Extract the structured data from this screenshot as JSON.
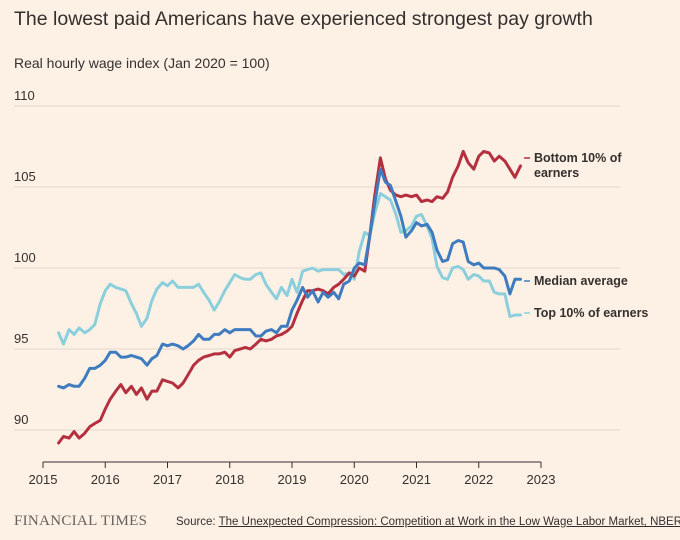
{
  "chart_data": {
    "type": "line",
    "title": "The lowest paid Americans have experienced strongest pay growth",
    "subtitle": "Real hourly wage index (Jan 2020 = 100)",
    "xlabel": "",
    "ylabel": "",
    "xlim": [
      2015,
      2023
    ],
    "ylim": [
      88,
      110
    ],
    "x_ticks": [
      "2015",
      "2016",
      "2017",
      "2018",
      "2019",
      "2020",
      "2021",
      "2022",
      "2023"
    ],
    "y_ticks": [
      "90",
      "95",
      "100",
      "105",
      "110"
    ],
    "grid": true,
    "legend": "direct labels at line ends",
    "series": [
      {
        "name": "Bottom 10% of earners",
        "label_lines": [
          "Bottom 10% of",
          "earners"
        ],
        "color": "#b5303f",
        "points": [
          [
            2015.25,
            89.2
          ],
          [
            2015.33,
            89.6
          ],
          [
            2015.42,
            89.5
          ],
          [
            2015.5,
            89.9
          ],
          [
            2015.58,
            89.5
          ],
          [
            2015.67,
            89.8
          ],
          [
            2015.75,
            90.2
          ],
          [
            2015.83,
            90.4
          ],
          [
            2015.92,
            90.6
          ],
          [
            2016.0,
            91.3
          ],
          [
            2016.08,
            91.9
          ],
          [
            2016.17,
            92.4
          ],
          [
            2016.25,
            92.8
          ],
          [
            2016.33,
            92.3
          ],
          [
            2016.42,
            92.7
          ],
          [
            2016.5,
            92.2
          ],
          [
            2016.58,
            92.6
          ],
          [
            2016.67,
            91.9
          ],
          [
            2016.75,
            92.4
          ],
          [
            2016.83,
            92.4
          ],
          [
            2016.92,
            93.1
          ],
          [
            2017.0,
            93.0
          ],
          [
            2017.08,
            92.9
          ],
          [
            2017.17,
            92.6
          ],
          [
            2017.25,
            92.9
          ],
          [
            2017.33,
            93.4
          ],
          [
            2017.42,
            94.0
          ],
          [
            2017.5,
            94.3
          ],
          [
            2017.58,
            94.5
          ],
          [
            2017.67,
            94.6
          ],
          [
            2017.75,
            94.7
          ],
          [
            2017.83,
            94.7
          ],
          [
            2017.92,
            94.8
          ],
          [
            2018.0,
            94.5
          ],
          [
            2018.08,
            94.9
          ],
          [
            2018.17,
            95.0
          ],
          [
            2018.25,
            95.1
          ],
          [
            2018.33,
            95.0
          ],
          [
            2018.42,
            95.3
          ],
          [
            2018.5,
            95.6
          ],
          [
            2018.58,
            95.5
          ],
          [
            2018.67,
            95.6
          ],
          [
            2018.75,
            95.8
          ],
          [
            2018.83,
            95.9
          ],
          [
            2018.92,
            96.1
          ],
          [
            2019.0,
            96.4
          ],
          [
            2019.08,
            97.2
          ],
          [
            2019.17,
            98.0
          ],
          [
            2019.25,
            98.6
          ],
          [
            2019.33,
            98.6
          ],
          [
            2019.42,
            98.7
          ],
          [
            2019.5,
            98.6
          ],
          [
            2019.58,
            98.4
          ],
          [
            2019.67,
            98.8
          ],
          [
            2019.75,
            99.0
          ],
          [
            2019.83,
            99.3
          ],
          [
            2019.92,
            99.7
          ],
          [
            2020.0,
            99.5
          ],
          [
            2020.08,
            100.0
          ],
          [
            2020.17,
            99.8
          ],
          [
            2020.25,
            102.0
          ],
          [
            2020.33,
            104.5
          ],
          [
            2020.42,
            106.8
          ],
          [
            2020.5,
            105.5
          ],
          [
            2020.58,
            104.8
          ],
          [
            2020.67,
            104.5
          ],
          [
            2020.75,
            104.4
          ],
          [
            2020.83,
            104.5
          ],
          [
            2020.92,
            104.4
          ],
          [
            2021.0,
            104.5
          ],
          [
            2021.08,
            104.1
          ],
          [
            2021.17,
            104.2
          ],
          [
            2021.25,
            104.1
          ],
          [
            2021.33,
            104.4
          ],
          [
            2021.42,
            104.3
          ],
          [
            2021.5,
            104.7
          ],
          [
            2021.58,
            105.6
          ],
          [
            2021.67,
            106.3
          ],
          [
            2021.75,
            107.2
          ],
          [
            2021.83,
            106.5
          ],
          [
            2021.92,
            106.1
          ],
          [
            2022.0,
            106.9
          ],
          [
            2022.08,
            107.2
          ],
          [
            2022.17,
            107.1
          ],
          [
            2022.25,
            106.6
          ],
          [
            2022.33,
            106.9
          ],
          [
            2022.42,
            106.6
          ],
          [
            2022.5,
            106.1
          ],
          [
            2022.58,
            105.6
          ],
          [
            2022.67,
            106.3
          ]
        ]
      },
      {
        "name": "Median average",
        "label_lines": [
          "Median average"
        ],
        "color": "#3f7cbf",
        "points": [
          [
            2015.25,
            92.7
          ],
          [
            2015.33,
            92.6
          ],
          [
            2015.42,
            92.8
          ],
          [
            2015.5,
            92.7
          ],
          [
            2015.58,
            92.7
          ],
          [
            2015.67,
            93.2
          ],
          [
            2015.75,
            93.8
          ],
          [
            2015.83,
            93.8
          ],
          [
            2015.92,
            94.0
          ],
          [
            2016.0,
            94.3
          ],
          [
            2016.08,
            94.8
          ],
          [
            2016.17,
            94.8
          ],
          [
            2016.25,
            94.5
          ],
          [
            2016.33,
            94.5
          ],
          [
            2016.42,
            94.6
          ],
          [
            2016.5,
            94.5
          ],
          [
            2016.58,
            94.4
          ],
          [
            2016.67,
            94.0
          ],
          [
            2016.75,
            94.4
          ],
          [
            2016.83,
            94.6
          ],
          [
            2016.92,
            95.3
          ],
          [
            2017.0,
            95.2
          ],
          [
            2017.08,
            95.3
          ],
          [
            2017.17,
            95.2
          ],
          [
            2017.25,
            95.0
          ],
          [
            2017.33,
            95.2
          ],
          [
            2017.42,
            95.5
          ],
          [
            2017.5,
            95.9
          ],
          [
            2017.58,
            95.6
          ],
          [
            2017.67,
            95.6
          ],
          [
            2017.75,
            95.9
          ],
          [
            2017.83,
            95.9
          ],
          [
            2017.92,
            96.2
          ],
          [
            2018.0,
            96.0
          ],
          [
            2018.08,
            96.2
          ],
          [
            2018.17,
            96.2
          ],
          [
            2018.25,
            96.2
          ],
          [
            2018.33,
            96.2
          ],
          [
            2018.42,
            95.8
          ],
          [
            2018.5,
            95.8
          ],
          [
            2018.58,
            96.1
          ],
          [
            2018.67,
            96.2
          ],
          [
            2018.75,
            96.0
          ],
          [
            2018.83,
            96.4
          ],
          [
            2018.92,
            96.4
          ],
          [
            2019.0,
            97.4
          ],
          [
            2019.08,
            98.0
          ],
          [
            2019.17,
            98.8
          ],
          [
            2019.25,
            98.2
          ],
          [
            2019.33,
            98.6
          ],
          [
            2019.42,
            97.9
          ],
          [
            2019.5,
            98.5
          ],
          [
            2019.58,
            98.2
          ],
          [
            2019.67,
            98.5
          ],
          [
            2019.75,
            98.1
          ],
          [
            2019.83,
            99.0
          ],
          [
            2019.92,
            99.2
          ],
          [
            2020.0,
            100.0
          ],
          [
            2020.08,
            100.3
          ],
          [
            2020.17,
            100.2
          ],
          [
            2020.25,
            102.0
          ],
          [
            2020.33,
            104.0
          ],
          [
            2020.42,
            106.1
          ],
          [
            2020.5,
            105.3
          ],
          [
            2020.58,
            105.1
          ],
          [
            2020.67,
            104.1
          ],
          [
            2020.75,
            103.2
          ],
          [
            2020.83,
            101.9
          ],
          [
            2020.92,
            102.3
          ],
          [
            2021.0,
            102.8
          ],
          [
            2021.08,
            102.6
          ],
          [
            2021.17,
            102.7
          ],
          [
            2021.25,
            102.2
          ],
          [
            2021.33,
            101.1
          ],
          [
            2021.42,
            100.4
          ],
          [
            2021.5,
            100.5
          ],
          [
            2021.58,
            101.5
          ],
          [
            2021.67,
            101.7
          ],
          [
            2021.75,
            101.6
          ],
          [
            2021.83,
            100.4
          ],
          [
            2021.92,
            100.2
          ],
          [
            2022.0,
            100.3
          ],
          [
            2022.08,
            100.0
          ],
          [
            2022.17,
            100.0
          ],
          [
            2022.25,
            100.0
          ],
          [
            2022.33,
            99.9
          ],
          [
            2022.42,
            99.5
          ],
          [
            2022.5,
            98.4
          ],
          [
            2022.58,
            99.3
          ],
          [
            2022.67,
            99.3
          ]
        ]
      },
      {
        "name": "Top 10% of earners",
        "label_lines": [
          "Top 10% of earners"
        ],
        "color": "#8ccfdc",
        "points": [
          [
            2015.25,
            96.0
          ],
          [
            2015.33,
            95.3
          ],
          [
            2015.42,
            96.2
          ],
          [
            2015.5,
            95.9
          ],
          [
            2015.58,
            96.3
          ],
          [
            2015.67,
            96.0
          ],
          [
            2015.75,
            96.2
          ],
          [
            2015.83,
            96.5
          ],
          [
            2015.92,
            97.8
          ],
          [
            2016.0,
            98.6
          ],
          [
            2016.08,
            99.0
          ],
          [
            2016.17,
            98.8
          ],
          [
            2016.25,
            98.7
          ],
          [
            2016.33,
            98.6
          ],
          [
            2016.42,
            97.8
          ],
          [
            2016.5,
            97.2
          ],
          [
            2016.58,
            96.4
          ],
          [
            2016.67,
            96.9
          ],
          [
            2016.75,
            98.0
          ],
          [
            2016.83,
            98.7
          ],
          [
            2016.92,
            99.1
          ],
          [
            2017.0,
            98.9
          ],
          [
            2017.08,
            99.2
          ],
          [
            2017.17,
            98.8
          ],
          [
            2017.25,
            98.8
          ],
          [
            2017.33,
            98.8
          ],
          [
            2017.42,
            98.8
          ],
          [
            2017.5,
            99.0
          ],
          [
            2017.58,
            98.5
          ],
          [
            2017.67,
            98.0
          ],
          [
            2017.75,
            97.4
          ],
          [
            2017.83,
            97.9
          ],
          [
            2017.92,
            98.6
          ],
          [
            2018.0,
            99.1
          ],
          [
            2018.08,
            99.6
          ],
          [
            2018.17,
            99.4
          ],
          [
            2018.25,
            99.3
          ],
          [
            2018.33,
            99.3
          ],
          [
            2018.42,
            99.6
          ],
          [
            2018.5,
            99.7
          ],
          [
            2018.58,
            99.0
          ],
          [
            2018.67,
            98.5
          ],
          [
            2018.75,
            98.1
          ],
          [
            2018.83,
            98.8
          ],
          [
            2018.92,
            98.3
          ],
          [
            2019.0,
            99.3
          ],
          [
            2019.08,
            98.5
          ],
          [
            2019.17,
            99.8
          ],
          [
            2019.25,
            99.9
          ],
          [
            2019.33,
            100.0
          ],
          [
            2019.42,
            99.8
          ],
          [
            2019.5,
            99.9
          ],
          [
            2019.58,
            99.9
          ],
          [
            2019.67,
            99.9
          ],
          [
            2019.75,
            99.9
          ],
          [
            2019.83,
            99.6
          ],
          [
            2019.92,
            99.7
          ],
          [
            2020.0,
            99.3
          ],
          [
            2020.08,
            101.0
          ],
          [
            2020.17,
            102.2
          ],
          [
            2020.25,
            102.0
          ],
          [
            2020.33,
            103.4
          ],
          [
            2020.42,
            104.6
          ],
          [
            2020.5,
            104.4
          ],
          [
            2020.58,
            104.2
          ],
          [
            2020.67,
            103.3
          ],
          [
            2020.75,
            102.2
          ],
          [
            2020.83,
            102.3
          ],
          [
            2020.92,
            102.6
          ],
          [
            2021.0,
            103.2
          ],
          [
            2021.08,
            103.3
          ],
          [
            2021.17,
            102.6
          ],
          [
            2021.25,
            101.8
          ],
          [
            2021.33,
            100.1
          ],
          [
            2021.42,
            99.4
          ],
          [
            2021.5,
            99.3
          ],
          [
            2021.58,
            100.0
          ],
          [
            2021.67,
            100.1
          ],
          [
            2021.75,
            99.9
          ],
          [
            2021.83,
            99.3
          ],
          [
            2021.92,
            99.6
          ],
          [
            2022.0,
            99.5
          ],
          [
            2022.08,
            99.2
          ],
          [
            2022.17,
            99.2
          ],
          [
            2022.25,
            98.5
          ],
          [
            2022.33,
            98.4
          ],
          [
            2022.42,
            98.4
          ],
          [
            2022.5,
            97.0
          ],
          [
            2022.58,
            97.1
          ],
          [
            2022.67,
            97.1
          ]
        ]
      }
    ]
  },
  "footer": {
    "brand": "FINANCIAL TIMES",
    "source_prefix": "Source: ",
    "source_link": "The Unexpected Compression: Competition at Work in the Low Wage Labor Market, NBER"
  },
  "colors": {
    "background": "#fdf1e6",
    "grid": "#e0d6cc",
    "axis": "#33302e",
    "text": "#33302e"
  }
}
